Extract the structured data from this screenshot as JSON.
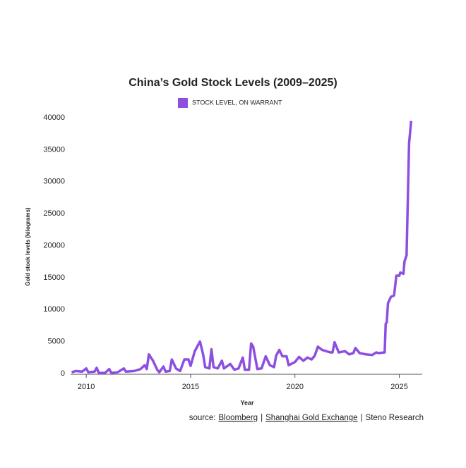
{
  "chart_data": {
    "type": "line",
    "title": "China’s Gold Stock Levels (2009–2025)",
    "x_label": "Year",
    "y_label": "Gold stock levels (kilograms)",
    "xlim": [
      2009.25,
      2026.1
    ],
    "xticks": [
      2010,
      2015,
      2020,
      2025
    ],
    "ylim": [
      0,
      40000
    ],
    "yticks": [
      0,
      5000,
      10000,
      15000,
      20000,
      25000,
      30000,
      35000,
      40000
    ],
    "grid": false,
    "legend": "top",
    "x": [
      2009.3,
      2009.5,
      2009.8,
      2010.0,
      2010.1,
      2010.4,
      2010.5,
      2010.6,
      2010.9,
      2011.1,
      2011.2,
      2011.5,
      2011.8,
      2011.9,
      2012.3,
      2012.6,
      2012.8,
      2012.9,
      2013.0,
      2013.2,
      2013.4,
      2013.5,
      2013.7,
      2013.8,
      2014.0,
      2014.1,
      2014.3,
      2014.5,
      2014.7,
      2014.9,
      2015.0,
      2015.2,
      2015.45,
      2015.6,
      2015.7,
      2015.9,
      2016.0,
      2016.1,
      2016.3,
      2016.5,
      2016.6,
      2016.9,
      2017.1,
      2017.3,
      2017.5,
      2017.6,
      2017.8,
      2017.9,
      2018.0,
      2018.2,
      2018.4,
      2018.6,
      2018.8,
      2019.0,
      2019.1,
      2019.25,
      2019.4,
      2019.6,
      2019.7,
      2020.0,
      2020.2,
      2020.4,
      2020.6,
      2020.8,
      2020.95,
      2021.1,
      2021.3,
      2021.5,
      2021.7,
      2021.8,
      2021.9,
      2022.1,
      2022.4,
      2022.6,
      2022.8,
      2022.9,
      2023.1,
      2023.4,
      2023.7,
      2023.9,
      2024.0,
      2024.3,
      2024.35,
      2024.4,
      2024.46,
      2024.6,
      2024.75,
      2024.86,
      2025.0,
      2025.05,
      2025.2,
      2025.25,
      2025.35,
      2025.47,
      2025.57
    ],
    "series": [
      {
        "name": "STOCK LEVEL, ON WARRANT",
        "color": "#8c4fe0",
        "values": [
          200,
          400,
          300,
          800,
          200,
          300,
          900,
          100,
          100,
          700,
          100,
          200,
          800,
          300,
          400,
          700,
          1300,
          700,
          3000,
          2000,
          600,
          200,
          1100,
          300,
          400,
          2200,
          800,
          400,
          2200,
          2200,
          1200,
          3500,
          5000,
          3000,
          1000,
          800,
          3800,
          1000,
          800,
          2000,
          800,
          1500,
          600,
          800,
          2500,
          600,
          600,
          4700,
          4200,
          700,
          800,
          2700,
          1300,
          1000,
          2800,
          3700,
          2700,
          2700,
          1300,
          1800,
          2600,
          2000,
          2500,
          2200,
          2800,
          4200,
          3700,
          3500,
          3300,
          3300,
          4900,
          3300,
          3500,
          3000,
          3200,
          4000,
          3200,
          3000,
          2900,
          3300,
          3200,
          3300,
          7800,
          8000,
          11000,
          12000,
          12200,
          15300,
          15300,
          15800,
          15600,
          17500,
          18500,
          36000,
          39500
        ]
      }
    ],
    "source_label": "source:",
    "sources": [
      "Bloomberg",
      "Shanghai Gold Exchange",
      "Steno Research"
    ],
    "source_separator": "|"
  }
}
